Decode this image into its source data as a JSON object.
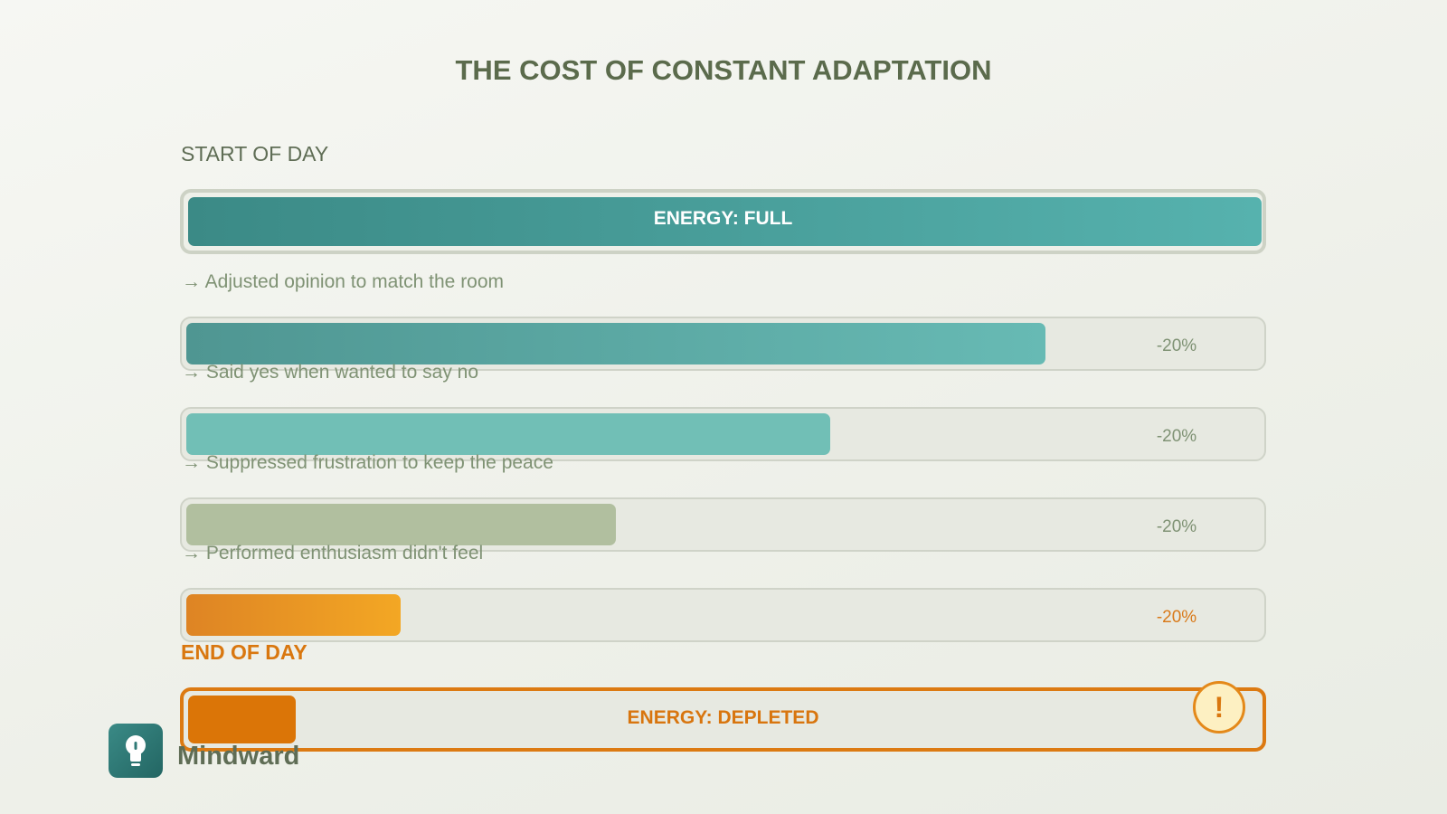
{
  "title": "THE COST OF CONSTANT ADAPTATION",
  "start": {
    "label": "START OF DAY",
    "bar_text": "ENERGY: FULL",
    "level": 100
  },
  "steps": [
    {
      "action": "→ Adjusted opinion to match the room",
      "change": "-20%",
      "level": 80
    },
    {
      "action": "→ Said yes when wanted to say no",
      "change": "-20%",
      "level": 60
    },
    {
      "action": "→ Suppressed frustration to keep the peace",
      "change": "-20%",
      "level": 40
    },
    {
      "action": "→ Performed enthusiasm didn't feel",
      "change": "-20%",
      "level": 20
    }
  ],
  "end": {
    "label": "END OF DAY",
    "bar_text": "ENERGY: DEPLETED",
    "level": 10,
    "alert": "!"
  },
  "brand": "Mindward"
}
